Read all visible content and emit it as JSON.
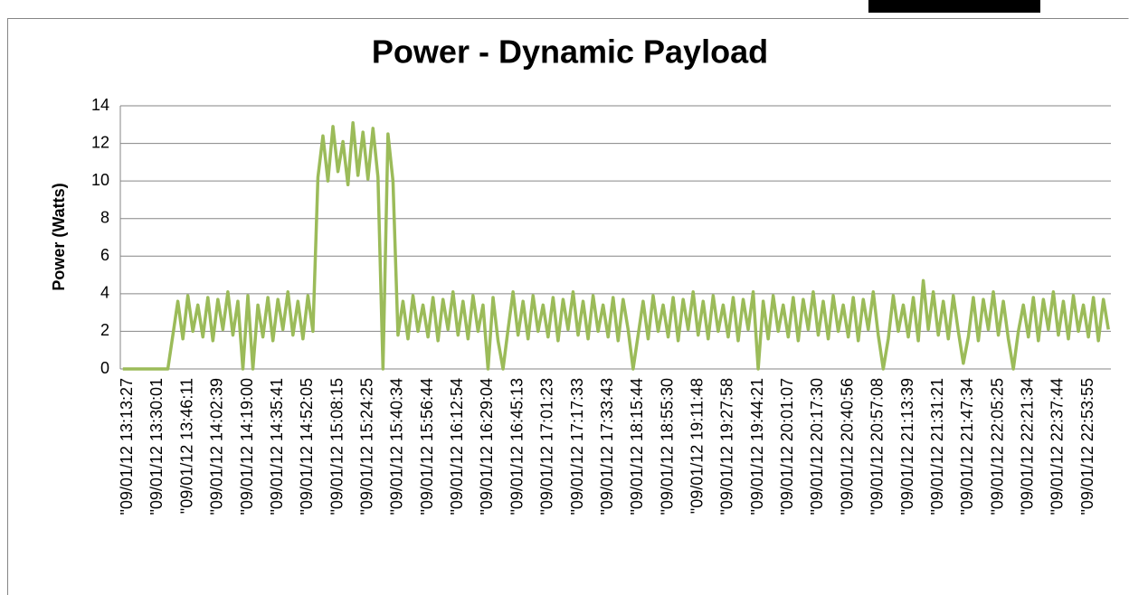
{
  "chart_data": {
    "type": "line",
    "title": "Power - Dynamic Payload",
    "y_label": "Power (Watts)",
    "color": "#9bbb59",
    "grid": true,
    "ylim": [
      0,
      14
    ],
    "yticks": [
      0,
      2,
      4,
      6,
      8,
      10,
      12,
      14
    ],
    "categories": [
      null,
      "\"09/01/12 13:13:27",
      null,
      null,
      null,
      null,
      null,
      "\"09/01/12 13:30:01",
      null,
      null,
      null,
      null,
      null,
      "\"09/01/12 13:46:11",
      null,
      null,
      null,
      null,
      null,
      "\"09/01/12 14:02:39",
      null,
      null,
      null,
      null,
      null,
      "\"09/01/12 14:19:00",
      null,
      null,
      null,
      null,
      null,
      "\"09/01/12 14:35:41",
      null,
      null,
      null,
      null,
      null,
      "\"09/01/12 14:52:05",
      null,
      null,
      null,
      null,
      null,
      "\"09/01/12 15:08:15",
      null,
      null,
      null,
      null,
      null,
      "\"09/01/12 15:24:25",
      null,
      null,
      null,
      null,
      null,
      "\"09/01/12 15:40:34",
      null,
      null,
      null,
      null,
      null,
      "\"09/01/12 15:56:44",
      null,
      null,
      null,
      null,
      null,
      "\"09/01/12 16:12:54",
      null,
      null,
      null,
      null,
      null,
      "\"09/01/12 16:29:04",
      null,
      null,
      null,
      null,
      null,
      "\"09/01/12 16:45:13",
      null,
      null,
      null,
      null,
      null,
      "\"09/01/12 17:01:23",
      null,
      null,
      null,
      null,
      null,
      "\"09/01/12 17:17:33",
      null,
      null,
      null,
      null,
      null,
      "\"09/01/12 17:33:43",
      null,
      null,
      null,
      null,
      null,
      "\"09/01/12 18:15:44",
      null,
      null,
      null,
      null,
      null,
      "\"09/01/12 18:55:30",
      null,
      null,
      null,
      null,
      null,
      "\"09/01/12 19:11:48",
      null,
      null,
      null,
      null,
      null,
      "\"09/01/12 19:27:58",
      null,
      null,
      null,
      null,
      null,
      "\"09/01/12 19:44:21",
      null,
      null,
      null,
      null,
      null,
      "\"09/01/12 20:01:07",
      null,
      null,
      null,
      null,
      null,
      "\"09/01/12 20:17:30",
      null,
      null,
      null,
      null,
      null,
      "\"09/01/12 20:40:56",
      null,
      null,
      null,
      null,
      null,
      "\"09/01/12 20:57:08",
      null,
      null,
      null,
      null,
      null,
      "\"09/01/12 21:13:39",
      null,
      null,
      null,
      null,
      null,
      "\"09/01/12 21:31:21",
      null,
      null,
      null,
      null,
      null,
      "\"09/01/12 21:47:34",
      null,
      null,
      null,
      null,
      null,
      "\"09/01/12 22:05:25",
      null,
      null,
      null,
      null,
      null,
      "\"09/01/12 22:21:34",
      null,
      null,
      null,
      null,
      null,
      "\"09/01/12 22:37:44",
      null,
      null,
      null,
      null,
      null,
      "\"09/01/12 22:53:55",
      null,
      null,
      null,
      null
    ],
    "values": [
      0,
      0,
      0,
      0,
      0,
      0,
      0,
      0,
      0,
      0,
      1.8,
      3.6,
      1.6,
      3.9,
      2.0,
      3.4,
      1.7,
      3.8,
      1.5,
      3.7,
      2.1,
      4.1,
      1.8,
      3.6,
      0,
      3.9,
      0,
      3.4,
      1.7,
      3.8,
      1.5,
      3.7,
      2.1,
      4.1,
      1.8,
      3.6,
      1.6,
      3.9,
      2.0,
      10.2,
      12.4,
      10.0,
      12.9,
      10.5,
      12.1,
      9.8,
      13.1,
      10.3,
      12.6,
      10.1,
      12.8,
      10.2,
      0,
      12.5,
      10.0,
      1.8,
      3.6,
      1.6,
      3.9,
      2.0,
      3.4,
      1.7,
      3.8,
      1.5,
      3.7,
      2.1,
      4.1,
      1.8,
      3.6,
      1.6,
      3.9,
      2.0,
      3.4,
      0,
      3.8,
      1.5,
      0,
      2.1,
      4.1,
      1.8,
      3.6,
      1.6,
      3.9,
      2.0,
      3.4,
      1.7,
      3.8,
      1.5,
      3.7,
      2.1,
      4.1,
      1.8,
      3.6,
      1.6,
      3.9,
      2.0,
      3.4,
      1.7,
      3.8,
      1.5,
      3.7,
      2.1,
      0,
      1.8,
      3.6,
      1.6,
      3.9,
      2.0,
      3.4,
      1.7,
      3.8,
      1.5,
      3.7,
      2.1,
      4.1,
      1.8,
      3.6,
      1.6,
      3.9,
      2.0,
      3.4,
      1.7,
      3.8,
      1.5,
      3.7,
      2.1,
      4.1,
      0,
      3.6,
      1.6,
      3.9,
      2.0,
      3.4,
      1.7,
      3.8,
      1.5,
      3.7,
      2.1,
      4.1,
      1.8,
      3.6,
      1.6,
      3.9,
      2.0,
      3.4,
      1.7,
      3.8,
      1.5,
      3.7,
      2.1,
      4.1,
      1.8,
      0,
      1.6,
      3.9,
      2.0,
      3.4,
      1.7,
      3.8,
      1.5,
      4.7,
      2.1,
      4.1,
      1.8,
      3.6,
      1.6,
      3.9,
      2.0,
      0.3,
      1.7,
      3.8,
      1.5,
      3.7,
      2.1,
      4.1,
      1.8,
      3.6,
      1.6,
      0,
      2.0,
      3.4,
      1.7,
      3.8,
      1.5,
      3.7,
      2.1,
      4.1,
      1.8,
      3.6,
      1.6,
      3.9,
      2.0,
      3.4,
      1.7,
      3.8,
      1.5,
      3.7,
      2.1
    ]
  }
}
